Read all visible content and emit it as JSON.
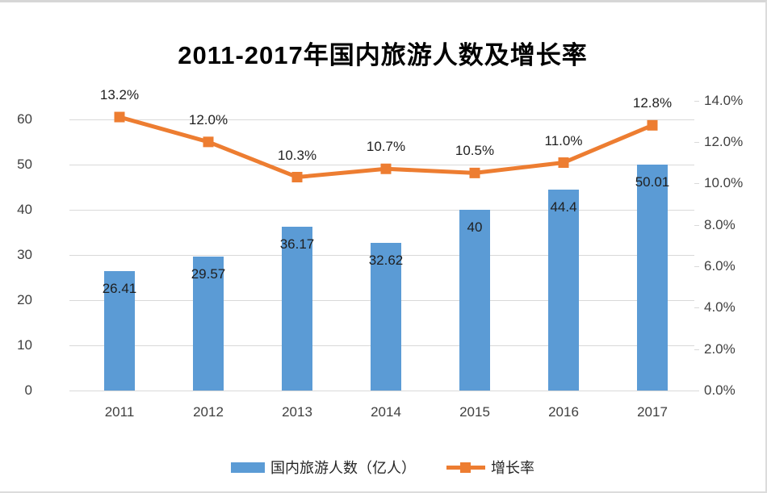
{
  "colors": {
    "bar": "#5B9BD5",
    "line": "#ED7D31",
    "gridline": "#D9D9D9",
    "axis_text": "#3F3F3F",
    "data_label_text": "#1F1F1F",
    "background": "#FFFFFF",
    "frame_border": "#D9D9D9"
  },
  "chart_data": {
    "type": "combo (bar + line, dual axis)",
    "title": "2011-2017年国内旅游人数及增长率",
    "categories": [
      "2011",
      "2012",
      "2013",
      "2014",
      "2015",
      "2016",
      "2017"
    ],
    "series": [
      {
        "name": "国内旅游人数（亿人）",
        "type": "bar",
        "axis": "left",
        "values": [
          26.41,
          29.57,
          36.17,
          32.62,
          40,
          44.4,
          50.01
        ],
        "data_labels": [
          "26.41",
          "29.57",
          "36.17",
          "32.62",
          "40",
          "44.4",
          "50.01"
        ]
      },
      {
        "name": "增长率",
        "type": "line",
        "axis": "right",
        "values": [
          13.2,
          12.0,
          10.3,
          10.7,
          10.5,
          11.0,
          12.8
        ],
        "data_labels": [
          "13.2%",
          "12.0%",
          "10.3%",
          "10.7%",
          "10.5%",
          "11.0%",
          "12.8%"
        ]
      }
    ],
    "left_axis": {
      "min": 0,
      "max": 60,
      "tick_values": [
        0,
        10,
        20,
        30,
        40,
        50,
        60
      ],
      "tick_labels": [
        "0",
        "10",
        "20",
        "30",
        "40",
        "50",
        "60"
      ]
    },
    "right_axis": {
      "min": 0,
      "max": 14,
      "tick_values": [
        0,
        2,
        4,
        6,
        8,
        10,
        12,
        14
      ],
      "tick_labels": [
        "0.0%",
        "2.0%",
        "4.0%",
        "6.0%",
        "8.0%",
        "10.0%",
        "12.0%",
        "14.0%"
      ]
    },
    "legend": {
      "position": "bottom",
      "entries": [
        "国内旅游人数（亿人）",
        "增长率"
      ]
    },
    "grid": "horizontal gridlines at left-axis ticks, grid on"
  }
}
